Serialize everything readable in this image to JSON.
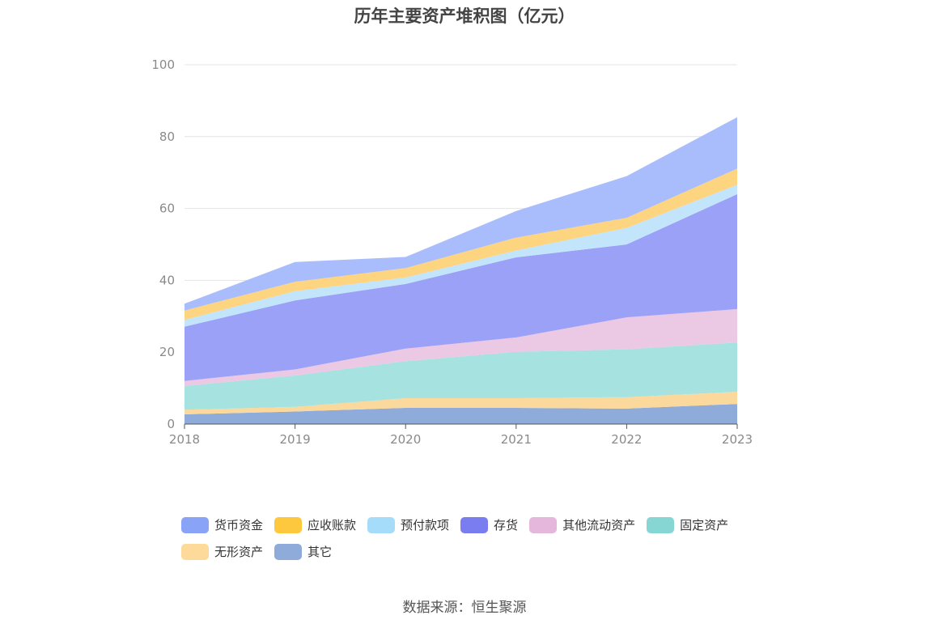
{
  "chart_data": {
    "type": "area",
    "stacked": true,
    "title": "历年主要资产堆积图（亿元）",
    "x": [
      "2018",
      "2019",
      "2020",
      "2021",
      "2022",
      "2023"
    ],
    "ylim": [
      0,
      100
    ],
    "yticks": [
      0,
      20,
      40,
      60,
      80,
      100
    ],
    "grid": true,
    "legend_position": "bottom",
    "series": [
      {
        "name": "其它",
        "color": "#8eabd9",
        "values": [
          2.7,
          3.5,
          4.5,
          4.5,
          4.3,
          5.6
        ]
      },
      {
        "name": "无形资产",
        "color": "#fbd89b",
        "values": [
          1.3,
          1.3,
          2.7,
          2.7,
          3.2,
          3.4
        ]
      },
      {
        "name": "固定资产",
        "color": "#a6e2df",
        "values": [
          6.6,
          8.7,
          10.3,
          12.9,
          13.3,
          13.7
        ]
      },
      {
        "name": "其他流动资产",
        "color": "#ebc8e4",
        "values": [
          1.4,
          1.7,
          3.5,
          4.0,
          8.9,
          9.3
        ]
      },
      {
        "name": "存货",
        "color": "#9ba1f7",
        "values": [
          15.1,
          19.2,
          18.0,
          22.3,
          20.3,
          32.0
        ]
      },
      {
        "name": "预付款项",
        "color": "#c3e5fb",
        "values": [
          1.9,
          2.6,
          1.8,
          1.9,
          4.6,
          2.6
        ]
      },
      {
        "name": "应收账款",
        "color": "#fdd47f",
        "values": [
          2.6,
          2.6,
          2.6,
          3.6,
          2.8,
          4.5
        ]
      },
      {
        "name": "货币资金",
        "color": "#a9bcfc",
        "values": [
          1.9,
          5.5,
          3.1,
          7.4,
          11.6,
          14.3
        ]
      }
    ],
    "legend_order": [
      "货币资金",
      "应收账款",
      "预付款项",
      "存货",
      "其他流动资产",
      "固定资产",
      "无形资产",
      "其它"
    ],
    "legend_colors": {
      "货币资金": "#89a3f7",
      "应收账款": "#fec83e",
      "预付款项": "#a4dcfa",
      "存货": "#7a7df0",
      "其他流动资产": "#e5b7dc",
      "固定资产": "#86d6d4",
      "无形资产": "#fdd99a",
      "其它": "#8eabd9"
    }
  },
  "footer": {
    "source": "数据来源：恒生聚源"
  }
}
